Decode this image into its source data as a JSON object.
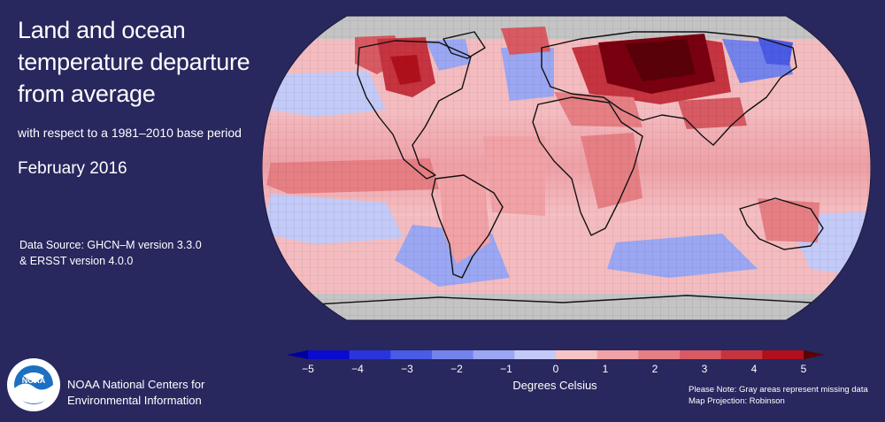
{
  "header": {
    "title_lines": [
      "Land and ocean",
      "temperature departure",
      "from average"
    ],
    "subtitle": "with respect to a 1981–2010 base period",
    "period": "February 2016"
  },
  "source": {
    "line1": "Data Source: GHCN–M version 3.3.0",
    "line2": "& ERSST version 4.0.0"
  },
  "legend": {
    "unit_label": "Degrees Celsius",
    "min": -5,
    "max": 5,
    "tick_labels": [
      "−5",
      "−4",
      "−3",
      "−2",
      "−1",
      "0",
      "1",
      "2",
      "3",
      "4",
      "5"
    ],
    "colors": [
      "#0a0ad0",
      "#2a34dd",
      "#4a5be6",
      "#7483ec",
      "#9ba7f2",
      "#c3caf7",
      "#f7c4c6",
      "#f1a2a6",
      "#e67f84",
      "#d85a62",
      "#c63440",
      "#b0101c"
    ],
    "under_color": "#0000a0",
    "over_color": "#5a0008",
    "missing_color": "#c4c4c4"
  },
  "notes": {
    "line1": "Please Note: Gray areas represent missing data",
    "line2": "Map Projection: Robinson"
  },
  "organization": {
    "line1": "NOAA National Centers for",
    "line2": "Environmental Information",
    "logo_text": "NOAA"
  }
}
